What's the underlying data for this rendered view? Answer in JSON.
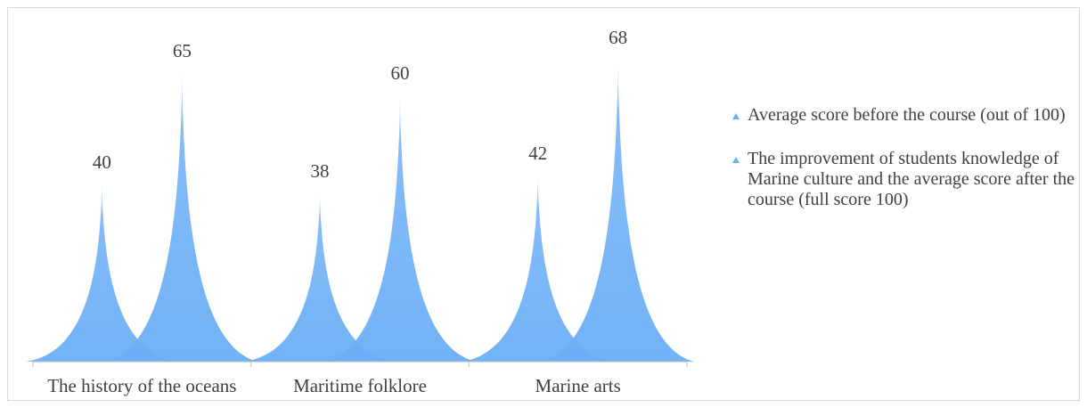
{
  "chart_data": {
    "type": "bar",
    "subtype": "cone-spike",
    "categories": [
      "The history of the oceans",
      "Maritime folklore",
      "Marine arts"
    ],
    "series": [
      {
        "name": "Average score before the course (out of 100)",
        "values": [
          40,
          38,
          42
        ],
        "color": "#6aaef5"
      },
      {
        "name": "The improvement of students knowledge of Marine culture and the average score after the course (full score 100)",
        "values": [
          65,
          60,
          68
        ],
        "color": "#6aaef5"
      }
    ],
    "ylim": [
      0,
      80
    ],
    "grid": false,
    "data_labels": true,
    "legend_position": "right"
  }
}
